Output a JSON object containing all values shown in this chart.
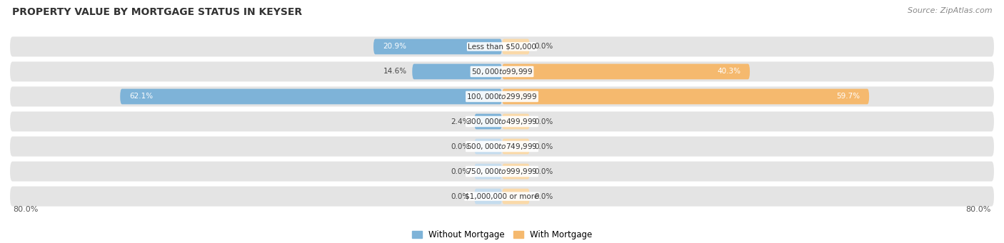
{
  "title": "PROPERTY VALUE BY MORTGAGE STATUS IN KEYSER",
  "source": "Source: ZipAtlas.com",
  "categories": [
    "Less than $50,000",
    "$50,000 to $99,999",
    "$100,000 to $299,999",
    "$300,000 to $499,999",
    "$500,000 to $749,999",
    "$750,000 to $999,999",
    "$1,000,000 or more"
  ],
  "without_mortgage": [
    20.9,
    14.6,
    62.1,
    2.4,
    0.0,
    0.0,
    0.0
  ],
  "with_mortgage": [
    0.0,
    40.3,
    59.7,
    0.0,
    0.0,
    0.0,
    0.0
  ],
  "without_mortgage_color": "#7eb3d8",
  "with_mortgage_color": "#f5b96e",
  "without_mortgage_color_light": "#c5dcee",
  "with_mortgage_color_light": "#fad9a8",
  "row_bg_color": "#e4e4e4",
  "xlim": 80.0,
  "title_fontsize": 10,
  "source_fontsize": 8,
  "legend_labels": [
    "Without Mortgage",
    "With Mortgage"
  ],
  "bar_height": 0.62,
  "min_bar_size": 4.5,
  "label_inside_threshold": 15
}
